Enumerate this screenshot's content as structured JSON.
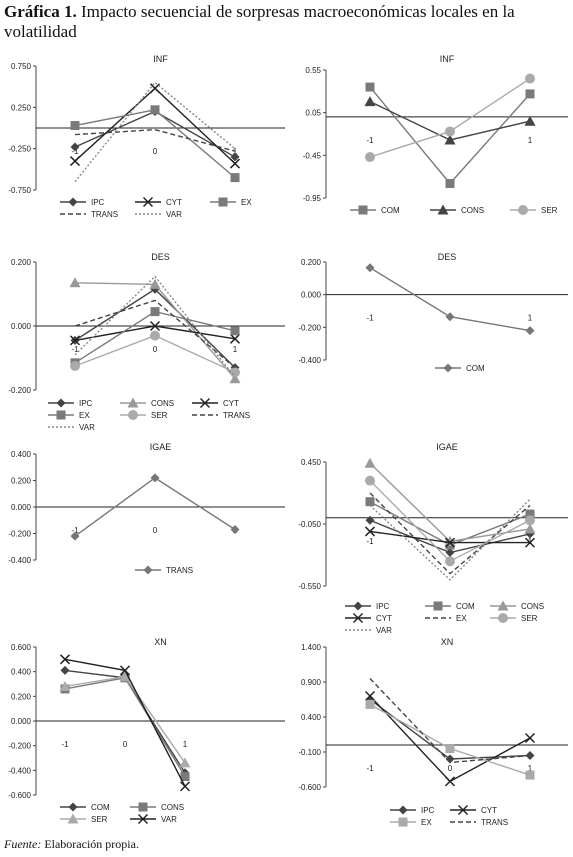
{
  "figure": {
    "label": "Gráfica 1.",
    "title": "Impacto secuencial de sorpresas macroeconómicas locales en la volatilidad",
    "source_label": "Fuente:",
    "source_text": "Elaboración propia."
  },
  "chart_data": [
    {
      "id": "inf-left",
      "type": "line",
      "title": "INF",
      "x": [
        -1,
        0,
        1
      ],
      "x_labels": [
        "-1",
        "0",
        "1"
      ],
      "ylim": [
        -0.75,
        0.75
      ],
      "yticks": [
        "0.750",
        "0.250",
        "-0.250",
        "-0.750"
      ],
      "ytick_values": [
        0.75,
        0.25,
        -0.25,
        -0.75
      ],
      "series": [
        {
          "name": "IPC",
          "values": [
            -0.23,
            0.2,
            -0.35
          ],
          "color": "#444444",
          "marker": "diamond",
          "dash": ""
        },
        {
          "name": "CYT",
          "values": [
            -0.4,
            0.48,
            -0.43
          ],
          "color": "#222222",
          "marker": "x",
          "dash": ""
        },
        {
          "name": "EX",
          "values": [
            0.03,
            0.22,
            -0.6
          ],
          "color": "#7a7a7a",
          "marker": "square",
          "dash": ""
        },
        {
          "name": "TRANS",
          "values": [
            -0.08,
            -0.02,
            -0.28
          ],
          "color": "#444444",
          "marker": "none",
          "dash": "5,3"
        },
        {
          "name": "VAR",
          "values": [
            -0.65,
            0.55,
            -0.25
          ],
          "color": "#888888",
          "marker": "none",
          "dash": "2,2"
        }
      ]
    },
    {
      "id": "inf-right",
      "type": "line",
      "title": "INF",
      "x": [
        -1,
        0,
        1
      ],
      "x_labels": [
        "-1",
        "0",
        "1"
      ],
      "ylim": [
        -0.95,
        0.55
      ],
      "yticks": [
        "0.55",
        "0.05",
        "-0.45",
        "-0.95"
      ],
      "ytick_values": [
        0.55,
        0.05,
        -0.45,
        -0.95
      ],
      "series": [
        {
          "name": "COM",
          "values": [
            0.35,
            -0.78,
            0.27
          ],
          "color": "#7a7a7a",
          "marker": "square",
          "dash": ""
        },
        {
          "name": "CONS",
          "values": [
            0.18,
            -0.27,
            -0.05
          ],
          "color": "#444444",
          "marker": "triangle",
          "dash": ""
        },
        {
          "name": "SER",
          "values": [
            -0.47,
            -0.17,
            0.45
          ],
          "color": "#aaaaaa",
          "marker": "circle",
          "dash": ""
        }
      ]
    },
    {
      "id": "des-left",
      "type": "line",
      "title": "DES",
      "x": [
        -1,
        0,
        1
      ],
      "x_labels": [
        "-1",
        "0",
        "1"
      ],
      "ylim": [
        -0.2,
        0.2
      ],
      "yticks": [
        "0.200",
        "0.000",
        "-0.200"
      ],
      "ytick_values": [
        0.2,
        0.0,
        -0.2
      ],
      "series": [
        {
          "name": "IPC",
          "values": [
            -0.045,
            0.115,
            -0.13
          ],
          "color": "#444444",
          "marker": "diamond",
          "dash": ""
        },
        {
          "name": "CONS",
          "values": [
            0.135,
            0.13,
            -0.165
          ],
          "color": "#999999",
          "marker": "triangle",
          "dash": ""
        },
        {
          "name": "CYT",
          "values": [
            -0.045,
            0.0,
            -0.04
          ],
          "color": "#222222",
          "marker": "x",
          "dash": ""
        },
        {
          "name": "EX",
          "values": [
            -0.115,
            0.045,
            -0.015
          ],
          "color": "#7a7a7a",
          "marker": "square",
          "dash": ""
        },
        {
          "name": "SER",
          "values": [
            -0.125,
            -0.03,
            -0.145
          ],
          "color": "#aaaaaa",
          "marker": "circle",
          "dash": ""
        },
        {
          "name": "TRANS",
          "values": [
            0.0,
            0.08,
            -0.13
          ],
          "color": "#444444",
          "marker": "none",
          "dash": "5,3"
        },
        {
          "name": "VAR",
          "values": [
            -0.09,
            0.155,
            -0.16
          ],
          "color": "#888888",
          "marker": "none",
          "dash": "2,2"
        }
      ]
    },
    {
      "id": "des-right",
      "type": "line",
      "title": "DES",
      "x": [
        -1,
        0,
        1
      ],
      "x_labels": [
        "-1",
        "0",
        "1"
      ],
      "ylim": [
        -0.4,
        0.2
      ],
      "yticks": [
        "0.200",
        "0.000",
        "-0.200",
        "-0.400"
      ],
      "ytick_values": [
        0.2,
        0.0,
        -0.2,
        -0.4
      ],
      "series": [
        {
          "name": "COM",
          "values": [
            0.165,
            -0.135,
            -0.22
          ],
          "color": "#777777",
          "marker": "diamond",
          "dash": ""
        }
      ]
    },
    {
      "id": "igae-left",
      "type": "line",
      "title": "IGAE",
      "x": [
        -1,
        0,
        1
      ],
      "x_labels": [
        "-1",
        "0",
        "1"
      ],
      "ylim": [
        -0.4,
        0.4
      ],
      "yticks": [
        "0.400",
        "0.200",
        "0.000",
        "-0.200",
        "-0.400"
      ],
      "ytick_values": [
        0.4,
        0.2,
        0.0,
        -0.2,
        -0.4
      ],
      "series": [
        {
          "name": "TRANS",
          "values": [
            -0.22,
            0.22,
            -0.17
          ],
          "color": "#777777",
          "marker": "diamond",
          "dash": ""
        }
      ]
    },
    {
      "id": "igae-right",
      "type": "line",
      "title": "IGAE",
      "x": [
        -1,
        0,
        1
      ],
      "x_labels": [
        "-1",
        "0",
        "1"
      ],
      "ylim": [
        -0.55,
        0.45
      ],
      "yticks": [
        "0.450",
        "-0.050",
        "-0.550"
      ],
      "ytick_values": [
        0.45,
        -0.05,
        -0.55
      ],
      "series": [
        {
          "name": "IPC",
          "values": [
            -0.02,
            -0.28,
            -0.13
          ],
          "color": "#444444",
          "marker": "diamond",
          "dash": ""
        },
        {
          "name": "COM",
          "values": [
            0.13,
            -0.22,
            0.03
          ],
          "color": "#7a7a7a",
          "marker": "square",
          "dash": ""
        },
        {
          "name": "CONS",
          "values": [
            0.44,
            -0.19,
            -0.09
          ],
          "color": "#999999",
          "marker": "triangle",
          "dash": ""
        },
        {
          "name": "CYT",
          "values": [
            -0.11,
            -0.2,
            -0.2
          ],
          "color": "#222222",
          "marker": "x",
          "dash": ""
        },
        {
          "name": "EX",
          "values": [
            0.2,
            -0.45,
            0.1
          ],
          "color": "#444444",
          "marker": "none",
          "dash": "5,3"
        },
        {
          "name": "SER",
          "values": [
            0.3,
            -0.35,
            -0.02
          ],
          "color": "#aaaaaa",
          "marker": "circle",
          "dash": ""
        },
        {
          "name": "VAR",
          "values": [
            0.1,
            -0.5,
            0.15
          ],
          "color": "#888888",
          "marker": "none",
          "dash": "2,2"
        }
      ]
    },
    {
      "id": "xn-left",
      "type": "line",
      "title": "XN",
      "x": [
        -1,
        0,
        1
      ],
      "x_labels": [
        "-1",
        "0",
        "1"
      ],
      "ylim": [
        -0.6,
        0.6
      ],
      "yticks": [
        "0.600",
        "0.400",
        "0.200",
        "0.000",
        "-0.200",
        "-0.400",
        "-0.600"
      ],
      "ytick_values": [
        0.6,
        0.4,
        0.2,
        0.0,
        -0.2,
        -0.4,
        -0.6
      ],
      "series": [
        {
          "name": "COM",
          "values": [
            0.41,
            0.35,
            -0.42
          ],
          "color": "#444444",
          "marker": "diamond",
          "dash": ""
        },
        {
          "name": "CONS",
          "values": [
            0.26,
            0.35,
            -0.45
          ],
          "color": "#7a7a7a",
          "marker": "square",
          "dash": ""
        },
        {
          "name": "SER",
          "values": [
            0.28,
            0.36,
            -0.34
          ],
          "color": "#aaaaaa",
          "marker": "triangle",
          "dash": ""
        },
        {
          "name": "VAR",
          "values": [
            0.5,
            0.41,
            -0.53
          ],
          "color": "#222222",
          "marker": "x",
          "dash": ""
        }
      ]
    },
    {
      "id": "xn-right",
      "type": "line",
      "title": "XN",
      "x": [
        -1,
        0,
        1
      ],
      "x_labels": [
        "-1",
        "0",
        "1"
      ],
      "ylim": [
        -0.6,
        1.4
      ],
      "yticks": [
        "1.400",
        "0.900",
        "0.400",
        "-0.100",
        "-0.600"
      ],
      "ytick_values": [
        1.4,
        0.9,
        0.4,
        -0.1,
        -0.6
      ],
      "series": [
        {
          "name": "IPC",
          "values": [
            0.65,
            -0.2,
            -0.15
          ],
          "color": "#444444",
          "marker": "diamond",
          "dash": ""
        },
        {
          "name": "CYT",
          "values": [
            0.7,
            -0.52,
            0.1
          ],
          "color": "#222222",
          "marker": "x",
          "dash": ""
        },
        {
          "name": "EX",
          "values": [
            0.58,
            -0.05,
            -0.43
          ],
          "color": "#aaaaaa",
          "marker": "square",
          "dash": ""
        },
        {
          "name": "TRANS",
          "values": [
            0.95,
            -0.25,
            -0.15
          ],
          "color": "#444444",
          "marker": "none",
          "dash": "5,3"
        }
      ]
    }
  ]
}
